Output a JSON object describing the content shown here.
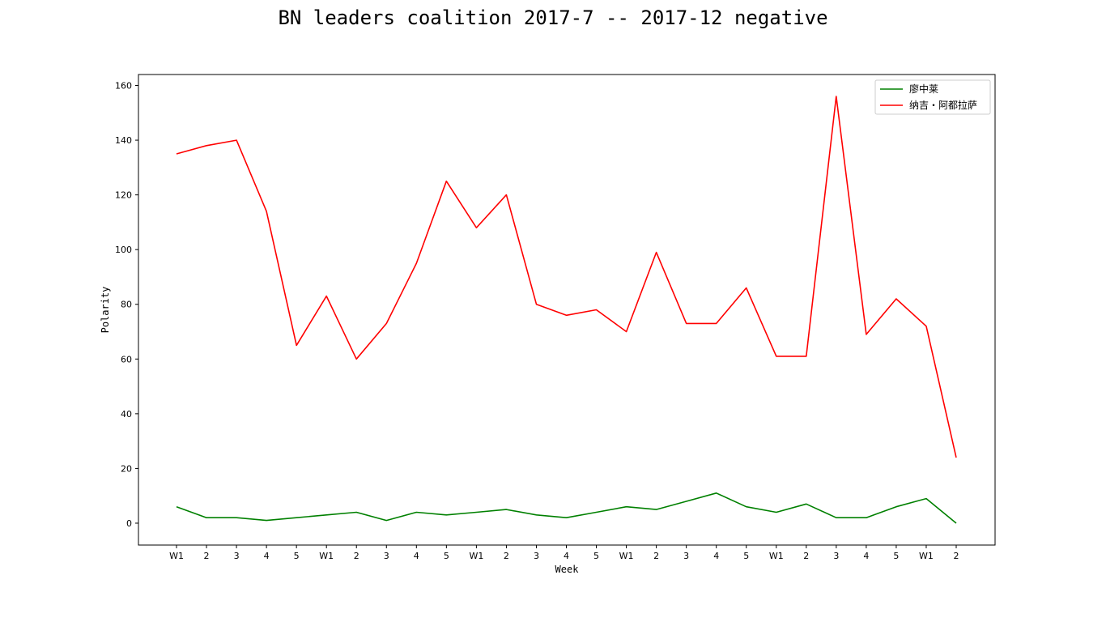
{
  "chart_data": {
    "type": "line",
    "title": "BN leaders coalition 2017-7 -- 2017-12 negative",
    "xlabel": "Week",
    "ylabel": "Polarity",
    "ylim": [
      -8,
      164
    ],
    "yticks": [
      0,
      20,
      40,
      60,
      80,
      100,
      120,
      140,
      160
    ],
    "categories": [
      "W1",
      "2",
      "3",
      "4",
      "5",
      "W1",
      "2",
      "3",
      "4",
      "5",
      "W1",
      "2",
      "3",
      "4",
      "5",
      "W1",
      "2",
      "3",
      "4",
      "5",
      "W1",
      "2",
      "3",
      "4",
      "5",
      "W1",
      "2"
    ],
    "legend_position": "top-right",
    "series": [
      {
        "name": "廖中莱",
        "color": "#008000",
        "values": [
          6,
          2,
          2,
          1,
          2,
          3,
          4,
          1,
          4,
          3,
          4,
          5,
          3,
          2,
          4,
          6,
          5,
          8,
          11,
          6,
          4,
          7,
          2,
          2,
          6,
          9,
          0
        ]
      },
      {
        "name": "纳吉・阿都拉萨",
        "color": "#ff0000",
        "values": [
          135,
          138,
          140,
          114,
          65,
          83,
          60,
          73,
          95,
          125,
          108,
          120,
          80,
          76,
          78,
          70,
          99,
          73,
          73,
          86,
          61,
          61,
          156,
          69,
          82,
          72,
          24
        ]
      }
    ]
  }
}
